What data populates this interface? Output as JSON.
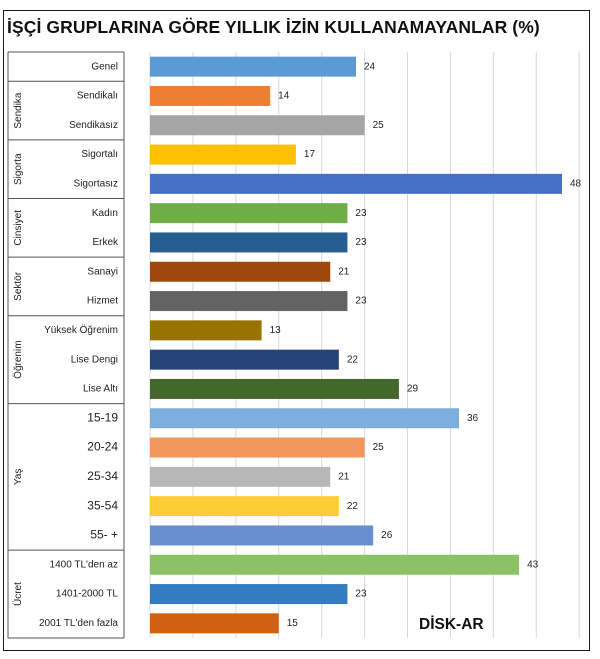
{
  "title": "İŞÇİ GRUPLARINA GÖRE YILLIK İZİN KULLANAMAYANLAR (%)",
  "watermark": "DİSK-AR",
  "chart_data": {
    "type": "bar",
    "orientation": "horizontal",
    "title": "İŞÇİ GRUPLARINA GÖRE YILLIK İZİN KULLANAMAYANLAR (%)",
    "xlim": [
      0,
      50
    ],
    "grid": true,
    "legend": "none",
    "groups": [
      {
        "name": "",
        "start": 0,
        "end": 0
      },
      {
        "name": "Sendika",
        "start": 1,
        "end": 2
      },
      {
        "name": "Sigorta",
        "start": 3,
        "end": 4
      },
      {
        "name": "Cinsiyet",
        "start": 5,
        "end": 6
      },
      {
        "name": "Sektör",
        "start": 7,
        "end": 8
      },
      {
        "name": "Öğrenim",
        "start": 9,
        "end": 11
      },
      {
        "name": "Yaş",
        "start": 12,
        "end": 16
      },
      {
        "name": "Ücret",
        "start": 17,
        "end": 19
      }
    ],
    "categories": [
      "Genel",
      "Sendikalı",
      "Sendikasız",
      "Sigortalı",
      "Sigortasız",
      "Kadın",
      "Erkek",
      "Sanayi",
      "Hizmet",
      "Yüksek Öğrenim",
      "Lise Dengi",
      "Lise Altı",
      "15-19",
      "20-24",
      "25-34",
      "35-54",
      "55- +",
      "1400 TL'den az",
      "1401-2000 TL",
      "2001 TL'den fazla"
    ],
    "values": [
      24,
      14,
      25,
      17,
      48,
      23,
      23,
      21,
      23,
      13,
      22,
      29,
      36,
      25,
      21,
      22,
      26,
      43,
      23,
      15
    ],
    "colors": [
      "#5b9bd5",
      "#ed7d31",
      "#a5a5a5",
      "#ffc000",
      "#4472c4",
      "#70ad47",
      "#255e91",
      "#9e480e",
      "#636363",
      "#997300",
      "#264478",
      "#43682b",
      "#7cafdd",
      "#f1975a",
      "#b7b7b7",
      "#ffcd33",
      "#698ed0",
      "#8cc168",
      "#327dc2",
      "#d26012"
    ],
    "large_label_indices": [
      12,
      13,
      14,
      15,
      16
    ]
  }
}
